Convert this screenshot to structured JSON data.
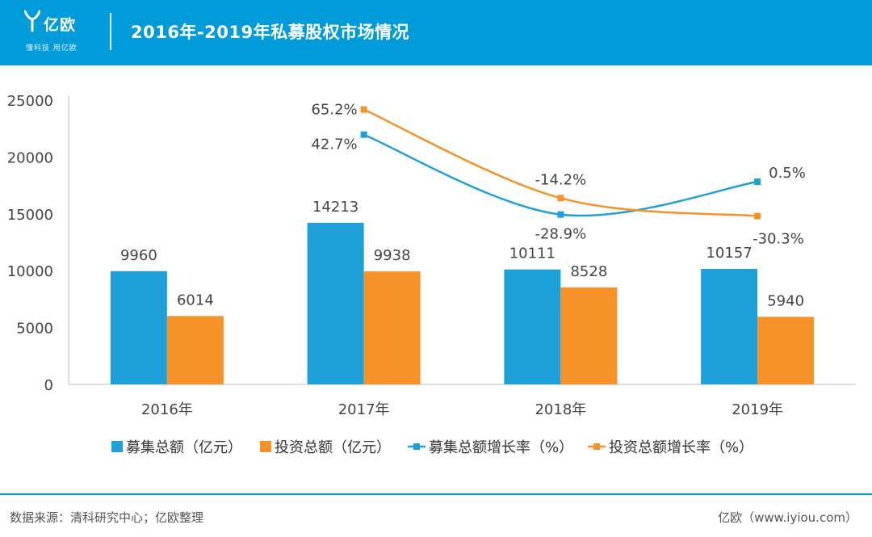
{
  "brand": {
    "logo_text": "亿欧",
    "slogan": "懂科技 用亿欧",
    "color": "#009bd8"
  },
  "title": "2016年-2019年私募股权市场情况",
  "chart_data": {
    "type": "bar",
    "categories": [
      "2016年",
      "2017年",
      "2018年",
      "2019年"
    ],
    "ylim": [
      0,
      25000
    ],
    "yticks": [
      0,
      5000,
      10000,
      15000,
      20000,
      25000
    ],
    "grid": false,
    "legend_position": "bottom",
    "series": [
      {
        "name": "募集总额（亿元）",
        "type": "bar",
        "color": "#1fa0d8",
        "values": [
          9960,
          14213,
          10111,
          10157
        ],
        "labels": [
          "9960",
          "14213",
          "10111",
          "10157"
        ]
      },
      {
        "name": "投资总额（亿元）",
        "type": "bar",
        "color": "#f5922a",
        "values": [
          6014,
          9938,
          8528,
          5940
        ],
        "labels": [
          "6014",
          "9938",
          "8528",
          "5940"
        ]
      },
      {
        "name": "募集总额增长率（%）",
        "type": "line",
        "color": "#1fa0d8",
        "values": [
          null,
          42.7,
          -28.9,
          0.5
        ],
        "labels": [
          "",
          "42.7%",
          "-28.9%",
          "0.5%"
        ]
      },
      {
        "name": "投资总额增长率（%）",
        "type": "line",
        "color": "#f5922a",
        "values": [
          null,
          65.2,
          -14.2,
          -30.3
        ],
        "labels": [
          "",
          "65.2%",
          "-14.2%",
          "-30.3%"
        ]
      }
    ]
  },
  "footer": {
    "source": "数据来源：清科研究中心；亿欧整理",
    "credit": "亿欧（www.iyiou.com）"
  }
}
